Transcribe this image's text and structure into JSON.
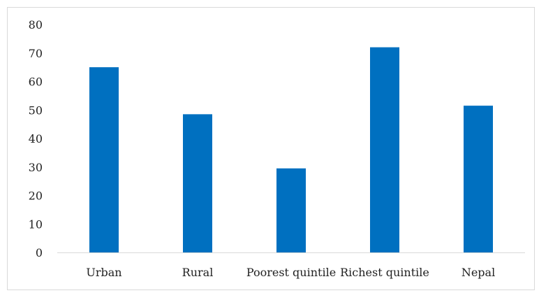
{
  "chart_data": {
    "type": "bar",
    "categories": [
      "Urban",
      "Rural",
      "Poorest quintile",
      "Richest quintile",
      "Nepal"
    ],
    "values": [
      65,
      48.5,
      29.5,
      72,
      51.5
    ],
    "title": "",
    "xlabel": "",
    "ylabel": "",
    "ylim": [
      0,
      80
    ],
    "yticks": [
      "0",
      "10",
      "20",
      "30",
      "40",
      "50",
      "60",
      "70",
      "80"
    ],
    "grid": false,
    "legend": "none",
    "bar_color": "#0070c0",
    "axis_color": "#d9d9d9"
  }
}
